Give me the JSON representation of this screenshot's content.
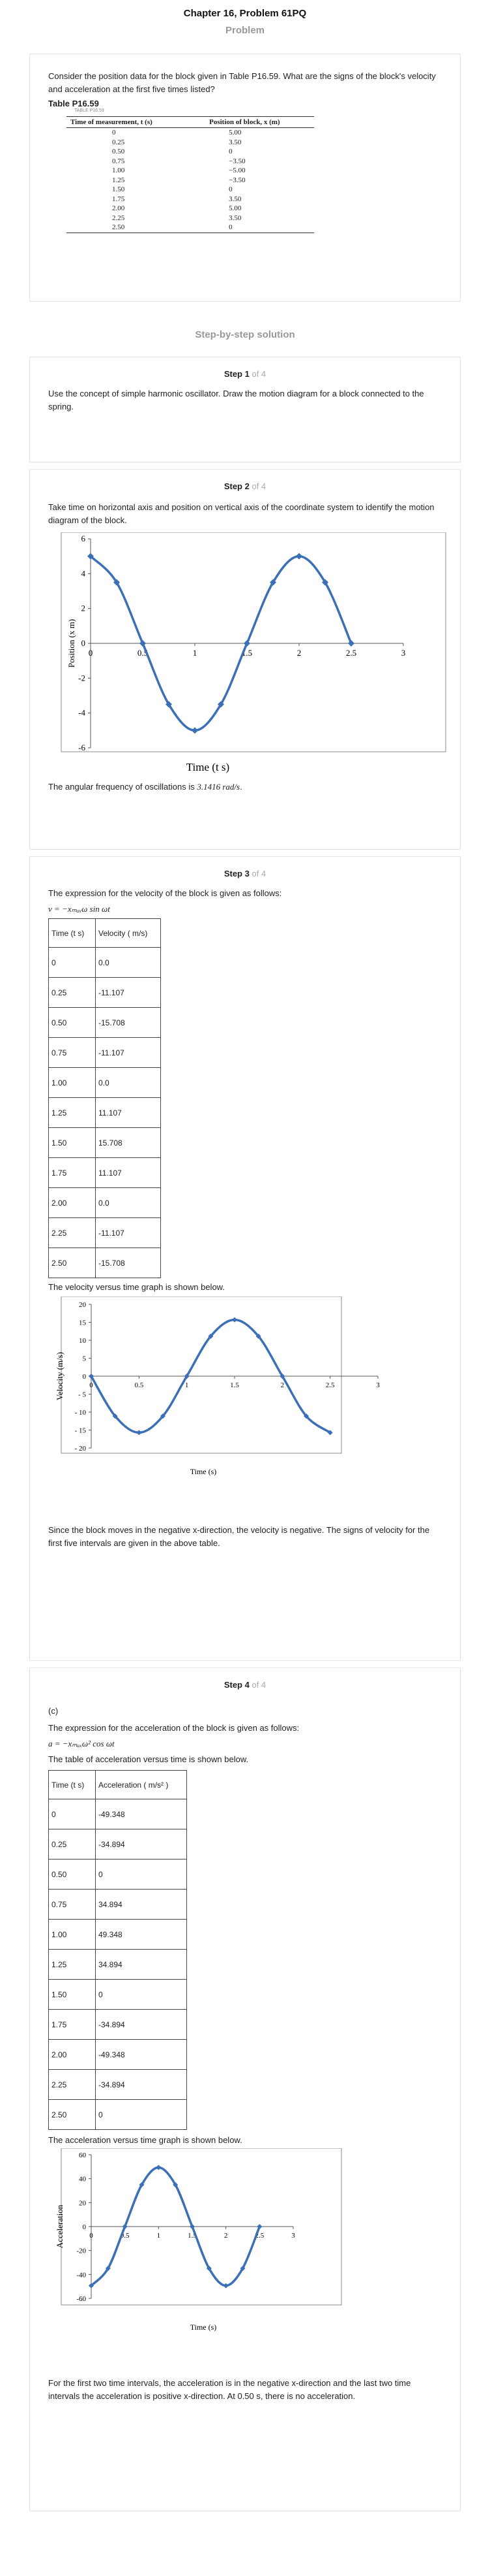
{
  "page": {
    "title": "Chapter 16, Problem 61PQ",
    "problem_heading": "Problem",
    "solution_heading": "Step-by-step solution"
  },
  "problem": {
    "text": "Consider the position data for the block given in Table P16.59. What are the signs of the block's velocity and acceleration at the first five times listed?",
    "table_title": "Table P16.59",
    "table_caption_small": "TABLE P16.59",
    "col1": "Time of measurement, t (s)",
    "col2": "Position of block, x (m)",
    "rows": [
      [
        "0",
        "5.00"
      ],
      [
        "0.25",
        "3.50"
      ],
      [
        "0.50",
        "0"
      ],
      [
        "0.75",
        "−3.50"
      ],
      [
        "1.00",
        "−5.00"
      ],
      [
        "1.25",
        "−3.50"
      ],
      [
        "1.50",
        "0"
      ],
      [
        "1.75",
        "3.50"
      ],
      [
        "2.00",
        "5.00"
      ],
      [
        "2.25",
        "3.50"
      ],
      [
        "2.50",
        "0"
      ]
    ]
  },
  "steps": {
    "of_label": "of 4",
    "s1": {
      "num": "Step 1",
      "text": "Use the concept of simple harmonic oscillator. Draw the motion diagram for a block connected to the spring."
    },
    "s2": {
      "num": "Step 2",
      "text": "Take time on horizontal axis and position on vertical axis of the coordinate system to identify the motion diagram of the block.",
      "after_pre": "The angular frequency of oscillations is ",
      "after_val": "3.1416 rad/s",
      "after_post": "."
    },
    "s3": {
      "num": "Step 3",
      "text": "The expression for the velocity of the block is given as follows:",
      "formula": "v = −xₘₐₓω sin ωt",
      "h1": "Time (t s)",
      "h2": "Velocity ( m/s)",
      "rows": [
        [
          "0",
          "0.0"
        ],
        [
          "0.25",
          "-11.107"
        ],
        [
          "0.50",
          "-15.708"
        ],
        [
          "0.75",
          "-11.107"
        ],
        [
          "1.00",
          "0.0"
        ],
        [
          "1.25",
          "11.107"
        ],
        [
          "1.50",
          "15.708"
        ],
        [
          "1.75",
          "11.107"
        ],
        [
          "2.00",
          "0.0"
        ],
        [
          "2.25",
          "-11.107"
        ],
        [
          "2.50",
          "-15.708"
        ]
      ],
      "graph_intro": "The velocity versus time graph is shown below.",
      "conclusion": "Since the block moves in the negative x-direction, the velocity is negative. The signs of velocity for the first five intervals are given in the above table."
    },
    "s4": {
      "num": "Step 4",
      "part": "(c)",
      "text": "The expression for the acceleration of the block is given as follows:",
      "formula": "a = −xₘₐₓω² cos ωt",
      "table_intro": "The table of acceleration versus time is shown below.",
      "h1": "Time (t s)",
      "h2": "Acceleration ( m/s² )",
      "rows": [
        [
          "0",
          "-49.348"
        ],
        [
          "0.25",
          "-34.894"
        ],
        [
          "0.50",
          "0"
        ],
        [
          "0.75",
          "34.894"
        ],
        [
          "1.00",
          "49.348"
        ],
        [
          "1.25",
          "34.894"
        ],
        [
          "1.50",
          "0"
        ],
        [
          "1.75",
          "-34.894"
        ],
        [
          "2.00",
          "-49.348"
        ],
        [
          "2.25",
          "-34.894"
        ],
        [
          "2.50",
          "0"
        ]
      ],
      "graph_intro": "The acceleration versus time graph is shown below.",
      "conclusion": "For the first two time intervals, the acceleration is in the negative x-direction and the last two time intervals the acceleration is positive x-direction. At 0.50 s, there is no acceleration."
    }
  },
  "chart_data": [
    {
      "type": "line",
      "xlabel": "Time (t s)",
      "ylabel": "Position (x m)",
      "xlim": [
        0,
        3
      ],
      "ylim": [
        -6,
        6
      ],
      "xticks": [
        "0",
        "0.5",
        "1",
        "1.5",
        "2",
        "2.5",
        "3"
      ],
      "yticks": [
        "6",
        "4",
        "2",
        "0",
        "-2",
        "-4",
        "-6"
      ],
      "x": [
        0,
        0.25,
        0.5,
        0.75,
        1.0,
        1.25,
        1.5,
        1.75,
        2.0,
        2.25,
        2.5
      ],
      "y": [
        5,
        3.5,
        0,
        -3.5,
        -5,
        -3.5,
        0,
        3.5,
        5,
        3.5,
        0
      ],
      "color": "#3b6fb6"
    },
    {
      "type": "line",
      "xlabel": "Time (s)",
      "ylabel": "Velocity (m/s)",
      "xlim": [
        0,
        3
      ],
      "ylim": [
        -20,
        20
      ],
      "xticks": [
        "0",
        "0.5",
        "1",
        "1.5",
        "2",
        "2.5",
        "3"
      ],
      "yticks": [
        "20",
        "15",
        "10",
        "5",
        "0",
        "- 5",
        "- 10",
        "- 15",
        "- 20"
      ],
      "x": [
        0,
        0.25,
        0.5,
        0.75,
        1.0,
        1.25,
        1.5,
        1.75,
        2.0,
        2.25,
        2.5
      ],
      "y": [
        0,
        -11.107,
        -15.708,
        -11.107,
        0,
        11.107,
        15.708,
        11.107,
        0,
        -11.107,
        -15.708
      ],
      "color": "#3b6fb6"
    },
    {
      "type": "line",
      "xlabel": "Time (s)",
      "ylabel": "Acceleration",
      "xlim": [
        0,
        3
      ],
      "ylim": [
        -60,
        60
      ],
      "xticks": [
        "0",
        "0.5",
        "1",
        "1.5",
        "2",
        "2.5",
        "3"
      ],
      "yticks": [
        "60",
        "40",
        "20",
        "0",
        "-20",
        "-40",
        "-60"
      ],
      "x": [
        0,
        0.25,
        0.5,
        0.75,
        1.0,
        1.25,
        1.5,
        1.75,
        2.0,
        2.25,
        2.5
      ],
      "y": [
        -49.348,
        -34.894,
        0,
        34.894,
        49.348,
        34.894,
        0,
        -34.894,
        -49.348,
        -34.894,
        0
      ],
      "color": "#3b6fb6"
    }
  ]
}
